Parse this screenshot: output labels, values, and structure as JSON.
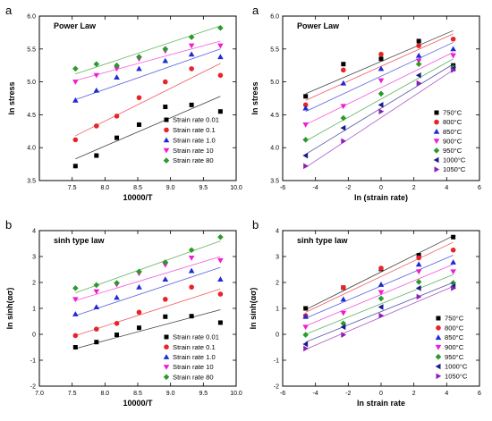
{
  "chart_data": [
    {
      "type": "scatter",
      "panel_label": "a",
      "title": "Power Law",
      "xlabel": "10000/T",
      "ylabel": "ln stress",
      "xlim": [
        7.0,
        10.0
      ],
      "ylim": [
        3.5,
        6.0
      ],
      "xticks": [
        7.5,
        8.0,
        8.5,
        9.0,
        9.5,
        10.0
      ],
      "yticks": [
        3.5,
        4.0,
        4.5,
        5.0,
        5.5,
        6.0
      ],
      "xtick_labels": [
        "7.5",
        "8.0",
        "8.5",
        "9.0",
        "9.5",
        "10.0"
      ],
      "ytick_labels": [
        "3.5",
        "4.0",
        "4.5",
        "5.0",
        "5.5",
        "6.0"
      ],
      "legend_position": "bottom-right",
      "series": [
        {
          "name": "Strain rate 0.01",
          "color": "#000000",
          "marker": "square",
          "x": [
            7.55,
            7.87,
            8.18,
            8.52,
            8.92,
            9.32,
            9.76
          ],
          "y": [
            3.72,
            3.88,
            4.15,
            4.35,
            4.62,
            4.65,
            4.55
          ],
          "fit": [
            [
              7.55,
              3.83
            ],
            [
              9.76,
              4.78
            ]
          ]
        },
        {
          "name": "Strain rate 0.1",
          "color": "#e8232a",
          "marker": "circle",
          "x": [
            7.55,
            7.87,
            8.18,
            8.52,
            8.92,
            9.32,
            9.76
          ],
          "y": [
            4.12,
            4.33,
            4.48,
            4.76,
            5.0,
            5.2,
            5.1
          ],
          "fit": [
            [
              7.55,
              4.18
            ],
            [
              9.76,
              5.28
            ]
          ]
        },
        {
          "name": "Strain rate 1.0",
          "color": "#1f2ad6",
          "marker": "triangle-up",
          "x": [
            7.55,
            7.87,
            8.18,
            8.52,
            8.92,
            9.32,
            9.76
          ],
          "y": [
            4.72,
            4.87,
            5.07,
            5.2,
            5.32,
            5.42,
            5.38
          ],
          "fit": [
            [
              7.55,
              4.73
            ],
            [
              9.76,
              5.5
            ]
          ]
        },
        {
          "name": "Strain rate 10",
          "color": "#f01cd0",
          "marker": "triangle-down",
          "x": [
            7.55,
            7.87,
            8.18,
            8.52,
            8.92,
            9.32,
            9.76
          ],
          "y": [
            5.0,
            5.1,
            5.2,
            5.35,
            5.47,
            5.55,
            5.55
          ],
          "fit": [
            [
              7.55,
              5.02
            ],
            [
              9.76,
              5.62
            ]
          ]
        },
        {
          "name": "Strain rate 80",
          "color": "#2a9a2a",
          "marker": "diamond",
          "x": [
            7.55,
            7.87,
            8.18,
            8.52,
            8.92,
            9.32,
            9.76
          ],
          "y": [
            5.2,
            5.27,
            5.25,
            5.38,
            5.5,
            5.68,
            5.82
          ],
          "fit": [
            [
              7.55,
              5.12
            ],
            [
              9.76,
              5.85
            ]
          ]
        }
      ]
    },
    {
      "type": "scatter",
      "panel_label": "a",
      "title": "Power Law",
      "xlabel": "ln (strain rate)",
      "ylabel": "ln stress",
      "xlim": [
        -6,
        6
      ],
      "ylim": [
        3.5,
        6.0
      ],
      "xticks": [
        -6,
        -4,
        -2,
        0,
        2,
        4,
        6
      ],
      "yticks": [
        3.5,
        4.0,
        4.5,
        5.0,
        5.5,
        6.0
      ],
      "xtick_labels": [
        "-6",
        "-4",
        "-2",
        "0",
        "2",
        "4",
        "6"
      ],
      "ytick_labels": [
        "3.5",
        "4.0",
        "4.5",
        "5.0",
        "5.5",
        "6.0"
      ],
      "legend_position": "bottom-right",
      "series": [
        {
          "name": "750°C",
          "color": "#000000",
          "marker": "square",
          "x": [
            -4.6,
            -2.3,
            0,
            2.3,
            4.4
          ],
          "y": [
            4.78,
            5.27,
            5.35,
            5.62,
            5.25
          ],
          "fit": [
            [
              -4.6,
              4.82
            ],
            [
              4.4,
              5.78
            ]
          ]
        },
        {
          "name": "800°C",
          "color": "#e8232a",
          "marker": "circle",
          "x": [
            -4.6,
            -2.3,
            0,
            2.3,
            4.4
          ],
          "y": [
            4.65,
            5.18,
            5.42,
            5.55,
            5.65
          ],
          "fit": [
            [
              -4.6,
              4.72
            ],
            [
              4.4,
              5.73
            ]
          ]
        },
        {
          "name": "850°C",
          "color": "#1f2ad6",
          "marker": "triangle-up",
          "x": [
            -4.6,
            -2.3,
            0,
            2.3,
            4.4
          ],
          "y": [
            4.6,
            4.98,
            5.2,
            5.4,
            5.5
          ],
          "fit": [
            [
              -4.6,
              4.55
            ],
            [
              4.4,
              5.6
            ]
          ]
        },
        {
          "name": "900°C",
          "color": "#f01cd0",
          "marker": "triangle-down",
          "x": [
            -4.6,
            -2.3,
            0,
            2.3,
            4.4
          ],
          "y": [
            4.35,
            4.63,
            5.02,
            5.32,
            5.4
          ],
          "fit": [
            [
              -4.6,
              4.35
            ],
            [
              4.4,
              5.45
            ]
          ]
        },
        {
          "name": "950°C",
          "color": "#2a9a2a",
          "marker": "diamond",
          "x": [
            -4.6,
            -2.3,
            0,
            2.3,
            4.4
          ],
          "y": [
            4.12,
            4.45,
            4.82,
            5.27,
            5.22
          ],
          "fit": [
            [
              -4.6,
              4.1
            ],
            [
              4.4,
              5.35
            ]
          ]
        },
        {
          "name": "1000°C",
          "color": "#1a1a8c",
          "marker": "triangle-left",
          "x": [
            -4.6,
            -2.3,
            0,
            2.3,
            4.4
          ],
          "y": [
            3.88,
            4.3,
            4.65,
            5.1,
            5.2
          ],
          "fit": [
            [
              -4.6,
              3.9
            ],
            [
              4.4,
              5.27
            ]
          ]
        },
        {
          "name": "1050°C",
          "color": "#8c1fb5",
          "marker": "triangle-right",
          "x": [
            -4.6,
            -2.3,
            0,
            2.3,
            4.4
          ],
          "y": [
            3.72,
            4.1,
            4.55,
            4.98,
            5.18
          ],
          "fit": [
            [
              -4.6,
              3.7
            ],
            [
              4.4,
              5.18
            ]
          ]
        }
      ]
    },
    {
      "type": "scatter",
      "panel_label": "b",
      "title": "sinh type law",
      "xlabel": "10000/T",
      "ylabel": "ln sinh(ασ)",
      "xlim": [
        7.0,
        10.0
      ],
      "ylim": [
        -2,
        4
      ],
      "xticks": [
        7.0,
        7.5,
        8.0,
        8.5,
        9.0,
        9.5,
        10.0
      ],
      "yticks": [
        -2,
        -1,
        0,
        1,
        2,
        3,
        4
      ],
      "xtick_labels": [
        "7.0",
        "7.5",
        "8.0",
        "8.5",
        "9.0",
        "9.5",
        "10.0"
      ],
      "ytick_labels": [
        "-2",
        "-1",
        "0",
        "1",
        "2",
        "3",
        "4"
      ],
      "legend_position": "bottom-right",
      "series": [
        {
          "name": "Strain rate 0.01",
          "color": "#000000",
          "marker": "square",
          "x": [
            7.55,
            7.87,
            8.18,
            8.52,
            8.92,
            9.32,
            9.76
          ],
          "y": [
            -0.5,
            -0.3,
            -0.02,
            0.25,
            0.68,
            0.7,
            0.45
          ],
          "fit": [
            [
              7.55,
              -0.55
            ],
            [
              9.76,
              0.95
            ]
          ]
        },
        {
          "name": "Strain rate 0.1",
          "color": "#e8232a",
          "marker": "circle",
          "x": [
            7.55,
            7.87,
            8.18,
            8.52,
            8.92,
            9.32,
            9.76
          ],
          "y": [
            -0.05,
            0.2,
            0.42,
            0.85,
            1.35,
            1.82,
            1.55
          ],
          "fit": [
            [
              7.55,
              -0.05
            ],
            [
              9.76,
              1.75
            ]
          ]
        },
        {
          "name": "Strain rate 1.0",
          "color": "#1f2ad6",
          "marker": "triangle-up",
          "x": [
            7.55,
            7.87,
            8.18,
            8.52,
            8.92,
            9.32,
            9.76
          ],
          "y": [
            0.78,
            1.05,
            1.42,
            1.82,
            2.12,
            2.45,
            2.12
          ],
          "fit": [
            [
              7.55,
              0.72
            ],
            [
              9.76,
              2.58
            ]
          ]
        },
        {
          "name": "Strain rate 10",
          "color": "#f01cd0",
          "marker": "triangle-down",
          "x": [
            7.55,
            7.87,
            8.18,
            8.52,
            8.92,
            9.32,
            9.76
          ],
          "y": [
            1.35,
            1.65,
            1.92,
            2.35,
            2.68,
            2.95,
            2.85
          ],
          "fit": [
            [
              7.55,
              1.3
            ],
            [
              9.76,
              3.0
            ]
          ]
        },
        {
          "name": "Strain rate 80",
          "color": "#2a9a2a",
          "marker": "diamond",
          "x": [
            7.55,
            7.87,
            8.18,
            8.52,
            8.92,
            9.32,
            9.76
          ],
          "y": [
            1.78,
            1.9,
            1.98,
            2.42,
            2.78,
            3.25,
            3.75
          ],
          "fit": [
            [
              7.55,
              1.6
            ],
            [
              9.76,
              3.6
            ]
          ]
        }
      ]
    },
    {
      "type": "scatter",
      "panel_label": "b",
      "title": "sinh type law",
      "xlabel": "ln strain rate",
      "ylabel": "ln sinh(ασ)",
      "xlim": [
        -6,
        6
      ],
      "ylim": [
        -2,
        4
      ],
      "xticks": [
        -6,
        -4,
        -2,
        0,
        2,
        4,
        6
      ],
      "yticks": [
        -2,
        -1,
        0,
        1,
        2,
        3,
        4
      ],
      "xtick_labels": [
        "-6",
        "-4",
        "-2",
        "0",
        "2",
        "4",
        "6"
      ],
      "ytick_labels": [
        "-2",
        "-1",
        "0",
        "1",
        "2",
        "3",
        "4"
      ],
      "legend_position": "bottom-right",
      "series": [
        {
          "name": "750°C",
          "color": "#000000",
          "marker": "square",
          "x": [
            -4.6,
            -2.3,
            0,
            2.3,
            4.4
          ],
          "y": [
            1.0,
            1.8,
            2.52,
            3.05,
            3.75
          ],
          "fit": [
            [
              -4.6,
              0.95
            ],
            [
              4.4,
              3.8
            ]
          ]
        },
        {
          "name": "800°C",
          "color": "#e8232a",
          "marker": "circle",
          "x": [
            -4.6,
            -2.3,
            0,
            2.3,
            4.4
          ],
          "y": [
            0.72,
            1.8,
            2.55,
            2.95,
            3.25
          ],
          "fit": [
            [
              -4.6,
              0.85
            ],
            [
              4.4,
              3.55
            ]
          ]
        },
        {
          "name": "850°C",
          "color": "#1f2ad6",
          "marker": "triangle-up",
          "x": [
            -4.6,
            -2.3,
            0,
            2.3,
            4.4
          ],
          "y": [
            0.68,
            1.35,
            1.92,
            2.7,
            2.78
          ],
          "fit": [
            [
              -4.6,
              0.62
            ],
            [
              4.4,
              3.05
            ]
          ]
        },
        {
          "name": "900°C",
          "color": "#f01cd0",
          "marker": "triangle-down",
          "x": [
            -4.6,
            -2.3,
            0,
            2.3,
            4.4
          ],
          "y": [
            0.28,
            0.82,
            1.62,
            2.42,
            2.42
          ],
          "fit": [
            [
              -4.6,
              0.32
            ],
            [
              4.4,
              2.7
            ]
          ]
        },
        {
          "name": "950°C",
          "color": "#2a9a2a",
          "marker": "diamond",
          "x": [
            -4.6,
            -2.3,
            0,
            2.3,
            4.4
          ],
          "y": [
            -0.02,
            0.42,
            1.38,
            2.02,
            1.98
          ],
          "fit": [
            [
              -4.6,
              0.0
            ],
            [
              4.4,
              2.3
            ]
          ]
        },
        {
          "name": "1000°C",
          "color": "#1a1a8c",
          "marker": "triangle-left",
          "x": [
            -4.6,
            -2.3,
            0,
            2.3,
            4.4
          ],
          "y": [
            -0.38,
            0.28,
            1.05,
            1.78,
            1.85
          ],
          "fit": [
            [
              -4.6,
              -0.3
            ],
            [
              4.4,
              2.0
            ]
          ]
        },
        {
          "name": "1050°C",
          "color": "#8c1fb5",
          "marker": "triangle-right",
          "x": [
            -4.6,
            -2.3,
            0,
            2.3,
            4.4
          ],
          "y": [
            -0.55,
            -0.02,
            0.72,
            1.45,
            1.78
          ],
          "fit": [
            [
              -4.6,
              -0.58
            ],
            [
              4.4,
              1.85
            ]
          ]
        }
      ]
    }
  ]
}
